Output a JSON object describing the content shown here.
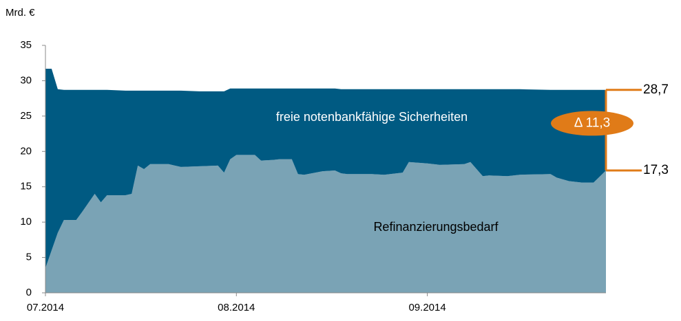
{
  "chart_data": {
    "type": "stacked_area",
    "y_axis_label": "Mrd. €",
    "x": [
      0,
      1,
      2,
      3,
      5,
      6,
      8,
      9,
      10,
      13,
      14,
      15,
      16,
      17,
      20,
      22,
      25,
      28,
      29,
      30,
      31,
      34,
      35,
      37,
      38,
      40,
      41,
      42,
      45,
      47,
      48,
      49,
      53,
      55,
      58,
      59,
      62,
      64,
      68,
      69,
      71,
      72,
      75,
      77,
      82,
      83,
      85,
      87,
      89,
      91
    ],
    "series": [
      {
        "name": "Refinanzierungsbedarf",
        "color": "#7aa3b5",
        "values": [
          3.5,
          6,
          8.5,
          10.3,
          10.3,
          11.5,
          14,
          12.8,
          13.8,
          13.8,
          14,
          18,
          17.5,
          18.2,
          18.2,
          17.8,
          17.9,
          18,
          17,
          18.9,
          19.5,
          19.5,
          18.7,
          18.8,
          18.9,
          18.9,
          16.8,
          16.7,
          17.2,
          17.3,
          16.9,
          16.8,
          16.8,
          16.7,
          17,
          18.5,
          18.3,
          18.1,
          18.2,
          18.5,
          16.5,
          16.6,
          16.5,
          16.7,
          16.8,
          16.3,
          15.8,
          15.6,
          15.6,
          17.3
        ]
      },
      {
        "name": "freie notenbankfähige Sicherheiten",
        "color": "#005a82",
        "values": [
          28.2,
          25.7,
          20.3,
          18.4,
          18.4,
          17.2,
          14.7,
          15.9,
          14.9,
          14.8,
          14.6,
          10.6,
          11.1,
          10.4,
          10.4,
          10.8,
          10.6,
          10.5,
          11.5,
          10,
          9.4,
          9.4,
          10.2,
          10.1,
          10,
          10,
          12.1,
          12.2,
          11.7,
          11.6,
          11.9,
          12,
          12,
          12.1,
          11.8,
          10.3,
          10.5,
          10.7,
          10.6,
          10.3,
          12.3,
          12.2,
          12.3,
          12.1,
          11.9,
          12.4,
          12.9,
          13.1,
          13.1,
          11.4
        ]
      }
    ],
    "xlim": [
      0,
      91
    ],
    "xticks": [
      {
        "value": 0,
        "label": "07.2014"
      },
      {
        "value": 31,
        "label": "08.2014"
      },
      {
        "value": 62,
        "label": "09.2014"
      }
    ],
    "ylim": [
      0,
      35
    ],
    "yticks": [
      0,
      5,
      10,
      15,
      20,
      25,
      30,
      35
    ],
    "annotations": [
      {
        "label": "28,7",
        "value": 28.7
      },
      {
        "label": "17,3",
        "value": 17.3
      }
    ],
    "delta_label": "Δ 11,3",
    "annotation_color": "#e07b18"
  }
}
